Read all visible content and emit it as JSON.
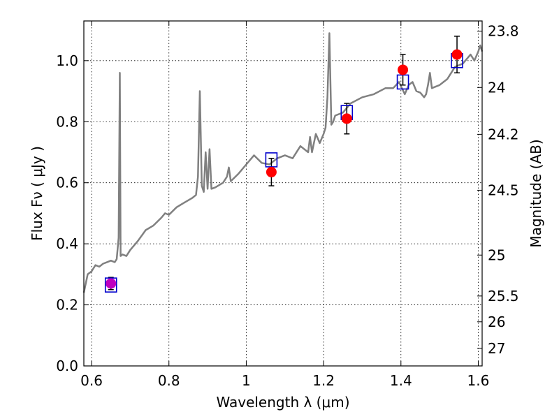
{
  "chart_data": {
    "type": "scatter",
    "title": "",
    "xlabel": "Wavelength  λ (μm)",
    "ylabel": "Flux  Fν  ( μJy )",
    "y2label": "Magnitude (AB)",
    "xlim": [
      0.58,
      1.61
    ],
    "ylim": [
      0.0,
      1.13
    ],
    "grid": true,
    "x_ticks": [
      0.6,
      0.8,
      1.0,
      1.2,
      1.4,
      1.6
    ],
    "x_tick_labels": [
      "0.6",
      "0.8",
      "1",
      "1.2",
      "1.4",
      "1.6"
    ],
    "y_ticks": [
      0.0,
      0.2,
      0.4,
      0.6,
      0.8,
      1.0
    ],
    "y_tick_labels": [
      "0.0",
      "0.2",
      "0.4",
      "0.6",
      "0.8",
      "1.0"
    ],
    "y2_ticks": [
      23.8,
      24,
      24.2,
      24.5,
      25,
      25.5,
      26,
      27
    ],
    "y2_tick_labels": [
      "23.8",
      "24",
      "24.2",
      "24.5",
      "25",
      "25.5",
      "26",
      "27"
    ],
    "colors": {
      "spectrum": "#808080",
      "observed": "#ff0000",
      "observed_first": "#bf00bf",
      "model": "#0000cc",
      "errorbar": "#000000"
    },
    "series": [
      {
        "kind": "line",
        "x": [
          0.58,
          0.59,
          0.6,
          0.61,
          0.62,
          0.63,
          0.64,
          0.65,
          0.66,
          0.665,
          0.67,
          0.673,
          0.675,
          0.68,
          0.69,
          0.7,
          0.72,
          0.74,
          0.76,
          0.78,
          0.79,
          0.8,
          0.82,
          0.84,
          0.86,
          0.87,
          0.875,
          0.88,
          0.885,
          0.89,
          0.895,
          0.9,
          0.905,
          0.91,
          0.92,
          0.94,
          0.95,
          0.955,
          0.96,
          0.98,
          1.0,
          1.02,
          1.04,
          1.06,
          1.08,
          1.1,
          1.12,
          1.14,
          1.16,
          1.165,
          1.17,
          1.18,
          1.19,
          1.2,
          1.205,
          1.21,
          1.215,
          1.22,
          1.225,
          1.23,
          1.25,
          1.27,
          1.3,
          1.33,
          1.36,
          1.38,
          1.395,
          1.41,
          1.42,
          1.43,
          1.44,
          1.45,
          1.46,
          1.465,
          1.47,
          1.475,
          1.48,
          1.5,
          1.52,
          1.54,
          1.56,
          1.58,
          1.59,
          1.6,
          1.605,
          1.61
        ],
        "y": [
          0.24,
          0.3,
          0.31,
          0.33,
          0.325,
          0.335,
          0.34,
          0.345,
          0.34,
          0.35,
          0.42,
          0.96,
          0.36,
          0.365,
          0.36,
          0.38,
          0.41,
          0.445,
          0.46,
          0.485,
          0.5,
          0.495,
          0.52,
          0.535,
          0.55,
          0.56,
          0.62,
          0.9,
          0.59,
          0.57,
          0.7,
          0.58,
          0.71,
          0.58,
          0.585,
          0.6,
          0.62,
          0.65,
          0.605,
          0.63,
          0.66,
          0.69,
          0.665,
          0.66,
          0.68,
          0.69,
          0.68,
          0.72,
          0.7,
          0.75,
          0.7,
          0.76,
          0.73,
          0.76,
          0.78,
          0.88,
          1.09,
          0.79,
          0.8,
          0.82,
          0.83,
          0.86,
          0.88,
          0.89,
          0.91,
          0.91,
          0.93,
          0.89,
          0.92,
          0.93,
          0.9,
          0.895,
          0.88,
          0.89,
          0.92,
          0.96,
          0.91,
          0.92,
          0.94,
          0.98,
          0.99,
          1.02,
          1.0,
          1.03,
          1.05,
          1.03
        ]
      },
      {
        "kind": "model_boxes",
        "x": [
          0.65,
          1.065,
          1.26,
          1.405,
          1.545
        ],
        "y": [
          0.265,
          0.675,
          0.83,
          0.93,
          1.0
        ]
      },
      {
        "kind": "observed_points",
        "x": [
          0.65,
          1.065,
          1.26,
          1.405,
          1.545
        ],
        "y": [
          0.27,
          0.635,
          0.81,
          0.97,
          1.02
        ],
        "yerr": [
          0.02,
          0.045,
          0.05,
          0.05,
          0.06
        ]
      }
    ]
  }
}
